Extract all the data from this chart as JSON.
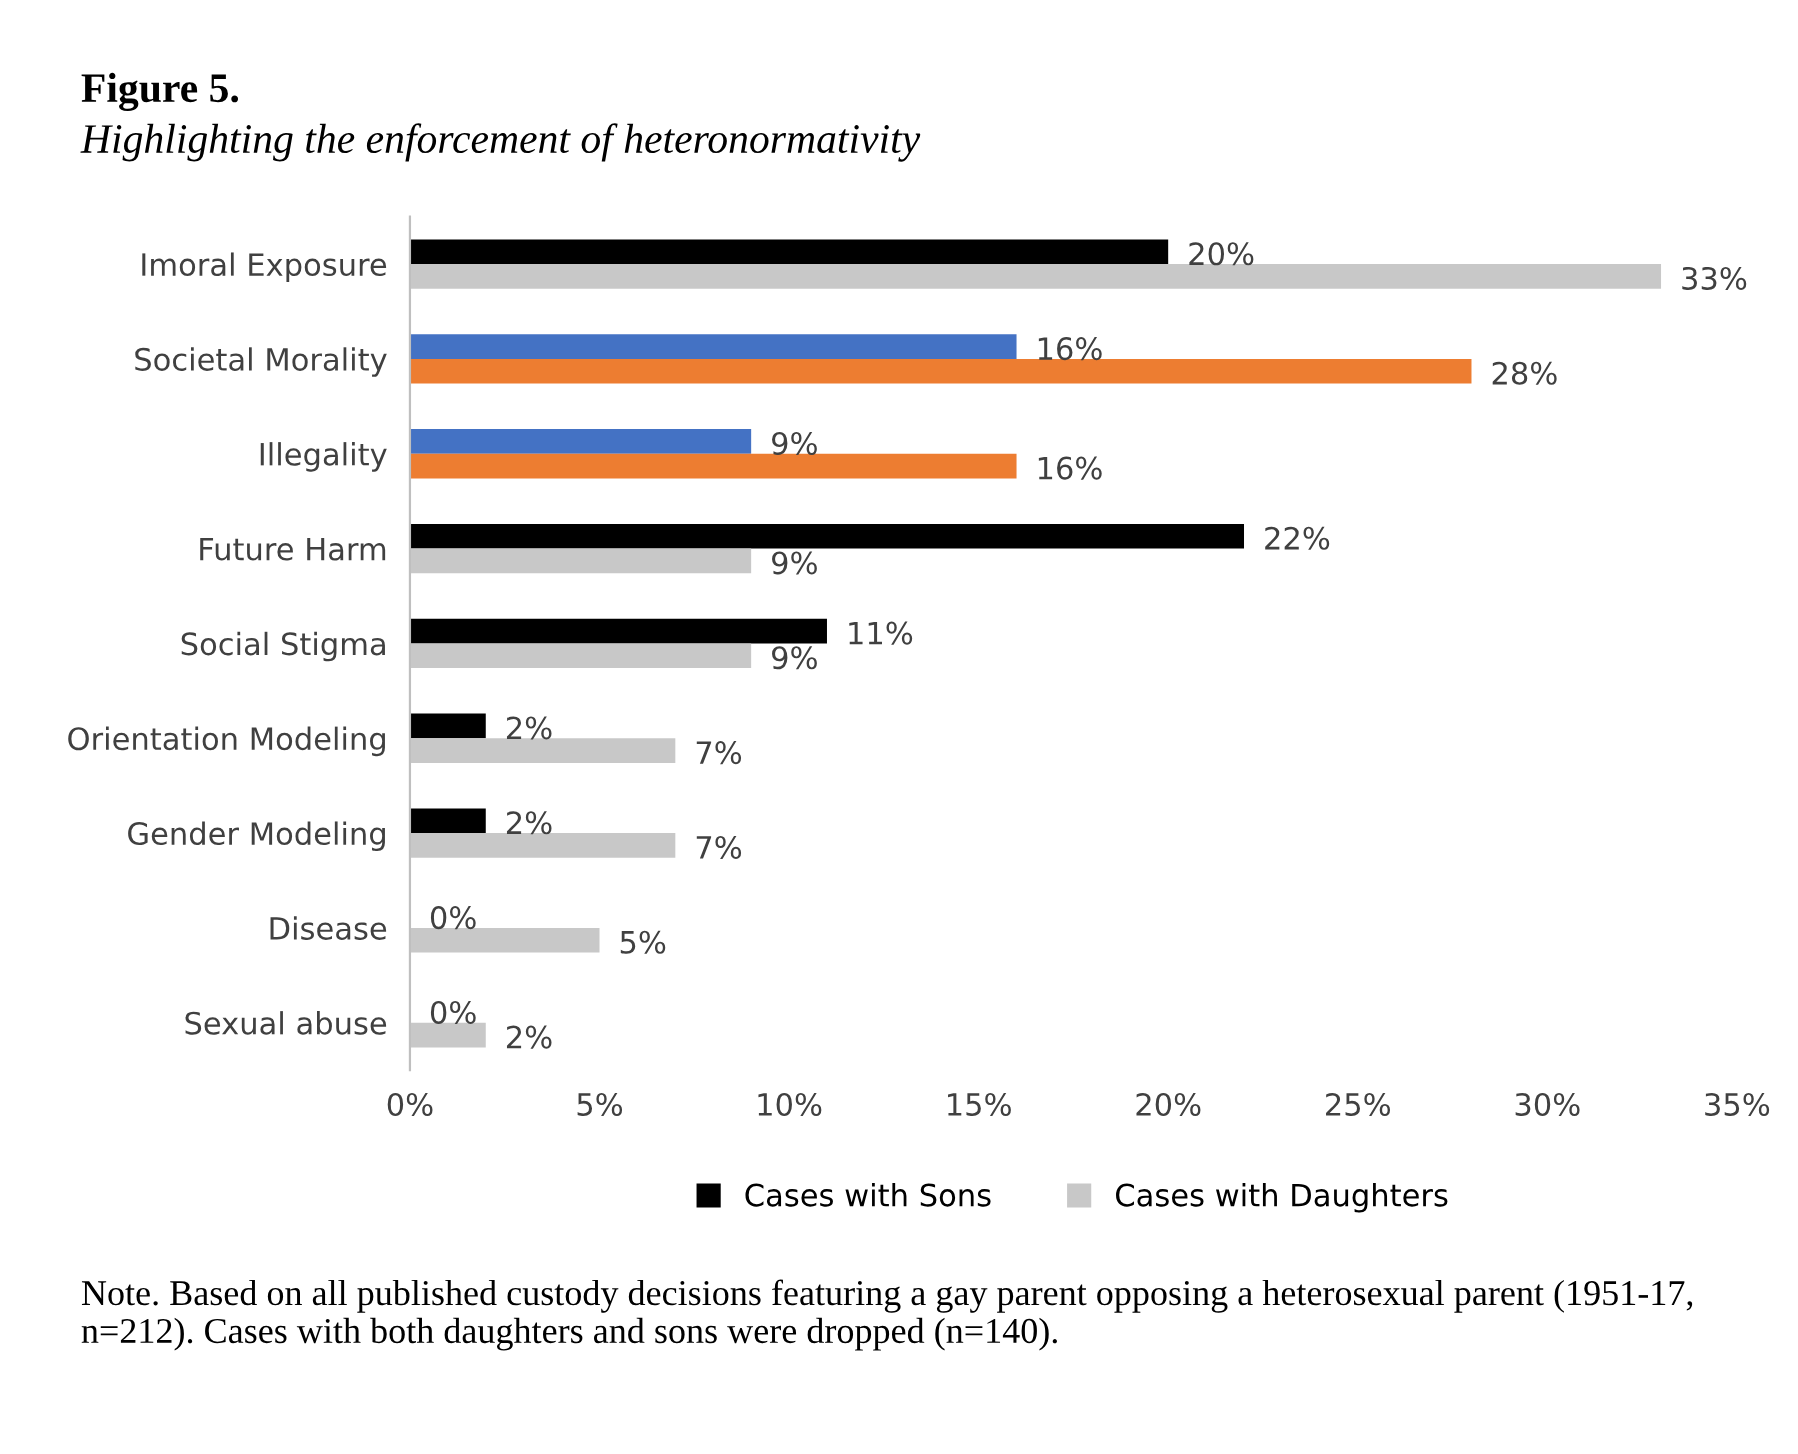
{
  "chart_data": {
    "type": "bar",
    "orientation": "horizontal",
    "title": "Figure 5.",
    "subtitle": "Highlighting the enforcement of heteronormativity",
    "categories": [
      "Imoral Exposure",
      "Societal Morality",
      "Illegality",
      "Future Harm",
      "Social Stigma",
      "Orientation Modeling",
      "Gender Modeling",
      "Disease",
      "Sexual abuse"
    ],
    "series": [
      {
        "name": "Cases with Sons",
        "color": "#000000",
        "colors": [
          "#000000",
          "#4472c4",
          "#4472c4",
          "#000000",
          "#000000",
          "#000000",
          "#000000",
          "#000000",
          "#000000"
        ],
        "values": [
          20,
          16,
          9,
          22,
          11,
          2,
          2,
          0,
          0
        ],
        "value_labels": [
          "20%",
          "16%",
          "9%",
          "22%",
          "11%",
          "2%",
          "2%",
          "0%",
          "0%"
        ]
      },
      {
        "name": "Cases with Daughters",
        "color": "#c8c8c8",
        "colors": [
          "#c8c8c8",
          "#ed7d31",
          "#ed7d31",
          "#c8c8c8",
          "#c8c8c8",
          "#c8c8c8",
          "#c8c8c8",
          "#c8c8c8",
          "#c8c8c8"
        ],
        "values": [
          33,
          28,
          16,
          9,
          9,
          7,
          7,
          5,
          2
        ],
        "value_labels": [
          "33%",
          "28%",
          "16%",
          "9%",
          "9%",
          "7%",
          "7%",
          "5%",
          "2%"
        ]
      }
    ],
    "xlim": [
      0,
      35
    ],
    "xticks": [
      {
        "value": 0,
        "label": "0%"
      },
      {
        "value": 5,
        "label": "5%"
      },
      {
        "value": 10,
        "label": "10%"
      },
      {
        "value": 15,
        "label": "15%"
      },
      {
        "value": 20,
        "label": "20%"
      },
      {
        "value": 25,
        "label": "25%"
      },
      {
        "value": 30,
        "label": "30%"
      },
      {
        "value": 35,
        "label": "35%"
      }
    ],
    "legend": "bottom",
    "grid": false,
    "annotations": [
      "Note. Based on all published custody decisions featuring a gay parent opposing a heterosexual parent (1951-17, n=212). Cases with both daughters and sons were dropped (n=140)."
    ]
  }
}
